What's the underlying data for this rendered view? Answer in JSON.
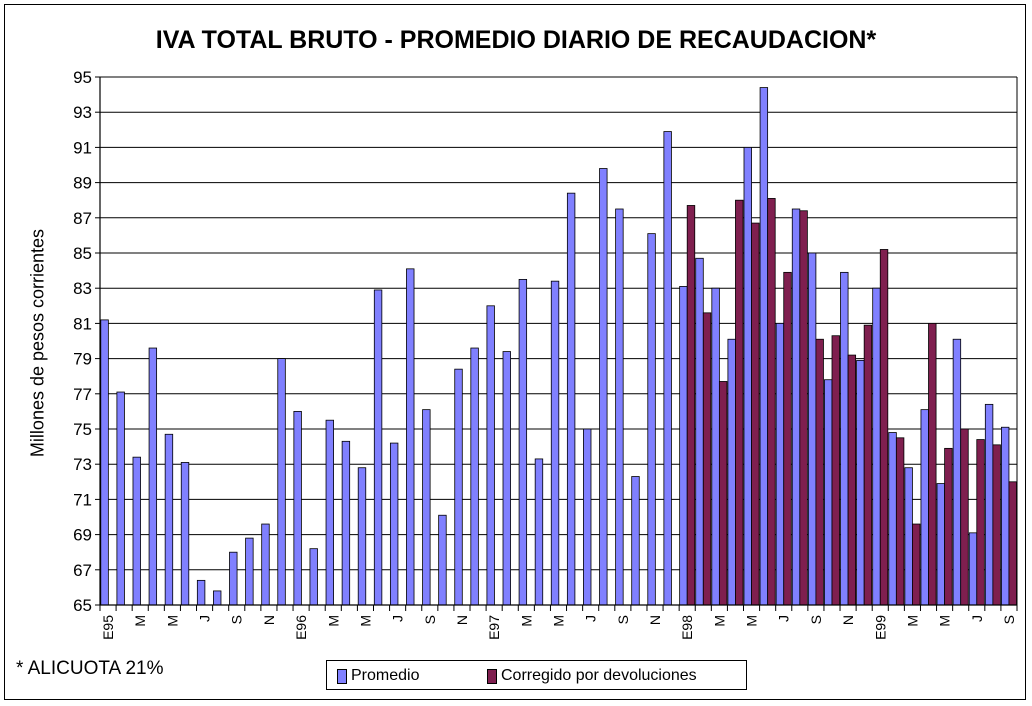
{
  "chart_data": {
    "type": "bar",
    "title": "IVA TOTAL BRUTO - PROMEDIO DIARIO DE RECAUDACION*",
    "ylabel": "Millones de pesos corrientes",
    "xlabel": "",
    "ylim": [
      65,
      95
    ],
    "yticks": [
      65,
      67,
      69,
      71,
      73,
      75,
      77,
      79,
      81,
      83,
      85,
      87,
      89,
      91,
      93,
      95
    ],
    "grid": true,
    "legend_position": "bottom",
    "categories": [
      "E95",
      "F95",
      "M95",
      "A95",
      "M95",
      "J95",
      "J95",
      "A95",
      "S95",
      "O95",
      "N95",
      "D95",
      "E96",
      "F96",
      "M96",
      "A96",
      "M96",
      "J96",
      "J96",
      "A96",
      "S96",
      "O96",
      "N96",
      "D96",
      "E97",
      "F97",
      "M97",
      "A97",
      "M97",
      "J97",
      "J97",
      "A97",
      "S97",
      "O97",
      "N97",
      "D97",
      "E98",
      "F98",
      "M98",
      "A98",
      "M98",
      "J98",
      "J98",
      "A98",
      "S98",
      "O98",
      "N98",
      "D98",
      "E99",
      "F99",
      "M99",
      "A99",
      "M99",
      "J99",
      "J99",
      "A99",
      "S99"
    ],
    "tick_labels": [
      "E95",
      "",
      "M",
      "",
      "M",
      "",
      "J",
      "",
      "S",
      "",
      "N",
      "",
      "E96",
      "",
      "M",
      "",
      "M",
      "",
      "J",
      "",
      "S",
      "",
      "N",
      "",
      "E97",
      "",
      "M",
      "",
      "M",
      "",
      "J",
      "",
      "S",
      "",
      "N",
      "",
      "E98",
      "",
      "M",
      "",
      "M",
      "",
      "J",
      "",
      "S",
      "",
      "N",
      "",
      "E99",
      "",
      "M",
      "",
      "M",
      "",
      "J",
      "",
      "S"
    ],
    "series": [
      {
        "name": "Promedio",
        "color": "#8080ff",
        "values": [
          81.2,
          77.1,
          73.4,
          79.6,
          74.7,
          73.1,
          66.4,
          65.8,
          68.0,
          68.8,
          69.6,
          79.0,
          76.0,
          68.2,
          75.5,
          74.3,
          72.8,
          82.9,
          74.2,
          84.1,
          76.1,
          70.1,
          78.4,
          79.6,
          82.0,
          79.4,
          83.5,
          73.3,
          83.4,
          88.4,
          75.0,
          89.8,
          87.5,
          72.3,
          86.1,
          91.9,
          83.1,
          84.7,
          83.0,
          80.1,
          91.0,
          94.4,
          81.0,
          87.5,
          85.0,
          77.8,
          83.9,
          78.9,
          83.0,
          74.8,
          72.8,
          76.1,
          71.9,
          80.1,
          69.1,
          76.4,
          75.1
        ]
      },
      {
        "name": "Corregido por devoluciones",
        "color": "#7f1f4f",
        "values": [
          null,
          null,
          null,
          null,
          null,
          null,
          null,
          null,
          null,
          null,
          null,
          null,
          null,
          null,
          null,
          null,
          null,
          null,
          null,
          null,
          null,
          null,
          null,
          null,
          null,
          null,
          null,
          null,
          null,
          null,
          null,
          null,
          null,
          null,
          null,
          null,
          87.7,
          81.6,
          77.7,
          88.0,
          86.7,
          88.1,
          83.9,
          87.4,
          80.1,
          80.3,
          79.2,
          80.9,
          85.2,
          74.5,
          69.6,
          81.0,
          73.9,
          75.0,
          74.4,
          74.1,
          72.0
        ]
      }
    ]
  },
  "footnote": "* ALICUOTA 21%",
  "legend": {
    "items": [
      {
        "label": "Promedio"
      },
      {
        "label": "Corregido por devoluciones"
      }
    ]
  }
}
